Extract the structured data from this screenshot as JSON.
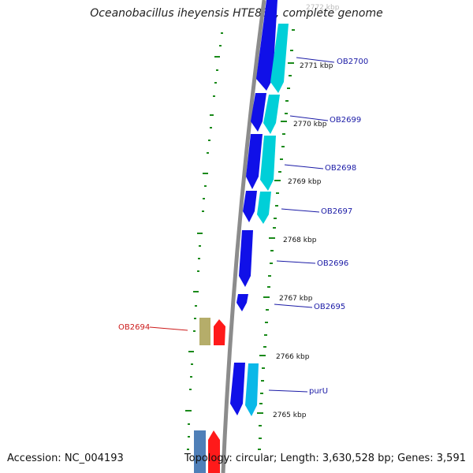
{
  "title": "Oceanobacillus iheyensis HTE831, complete genome",
  "footer": {
    "accession": "Accession: NC_004193",
    "summary": "Topology: circular; Length: 3,630,528 bp; Genes: 3,591"
  },
  "colors": {
    "backbone": "#8c8c8c",
    "gene_strand_1": "#1010e8",
    "gene_strand_2": "#00cfd8",
    "gene_alt_blue": "#0ab8e8",
    "gene_red": "#ff1a1a",
    "gene_olive": "#b5ad6a",
    "gene_steel": "#4f7fb8",
    "tick": "#1a8a1a",
    "label_blue": "#1a1aa6",
    "label_red": "#cc1a1a"
  },
  "scale_labels": [
    "2772 kbp",
    "2771 kbp",
    "2770 kbp",
    "2769 kbp",
    "2768 kbp",
    "2767 kbp",
    "2766 kbp",
    "2765 kbp"
  ],
  "gene_labels": [
    "OB2700",
    "OB2699",
    "OB2698",
    "OB2697",
    "OB2696",
    "OB2695",
    "OB2694",
    "purU"
  ]
}
